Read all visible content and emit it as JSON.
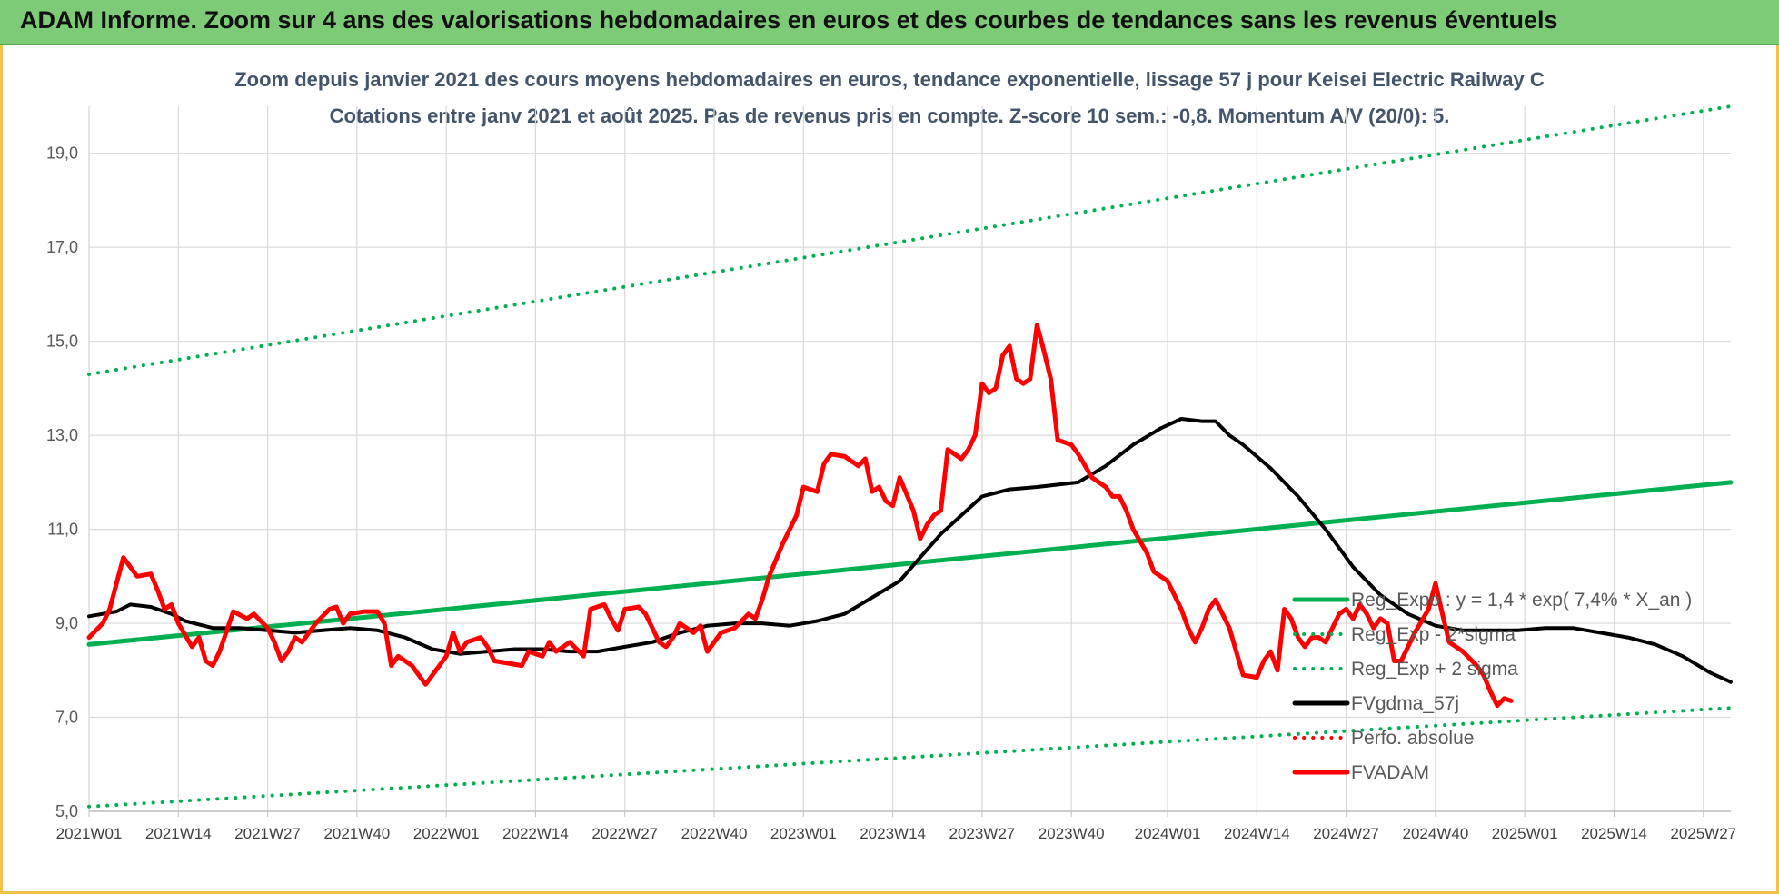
{
  "header": {
    "title": "ADAM Informe. Zoom sur 4 ans des valorisations hebdomadaires en euros et des courbes de tendances sans les revenus éventuels",
    "background": "#7dcb76"
  },
  "chart_data": {
    "type": "line",
    "title_line1": "Zoom depuis janvier 2021 des cours moyens hebdomadaires en euros, tendance exponentielle, lissage 57 j pour Keisei Electric Railway C",
    "title_line2": "Cotations entre janv 2021 et août 2025.  Pas de revenus pris en compte. Z-score 10 sem.: -0,8. Momentum A/V (20/0): 5.",
    "ylim": [
      5,
      20
    ],
    "yticks": [
      "5,0",
      "7,0",
      "9,0",
      "11,0",
      "13,0",
      "15,0",
      "17,0",
      "19,0"
    ],
    "ytick_values": [
      5,
      7,
      9,
      11,
      13,
      15,
      17,
      19
    ],
    "x_range": [
      0,
      239
    ],
    "xticks": [
      "2021W01",
      "2021W14",
      "2021W27",
      "2021W40",
      "2022W01",
      "2022W14",
      "2022W27",
      "2022W40",
      "2023W01",
      "2023W14",
      "2023W27",
      "2023W40",
      "2024W01",
      "2024W14",
      "2024W27",
      "2024W40",
      "2025W01",
      "2025W14",
      "2025W27"
    ],
    "xtick_positions": [
      0,
      13,
      26,
      39,
      52,
      65,
      78,
      91,
      104,
      117,
      130,
      143,
      157,
      170,
      183,
      196,
      209,
      222,
      235
    ],
    "grid": true,
    "legend_position": "bottom-right",
    "legend": [
      {
        "label": "Reg_Expo : y = 1,4 * exp( 7,4% *  X_an )",
        "color": "#00b050",
        "style": "solid"
      },
      {
        "label": "Reg_Exp - 2*sigma",
        "color": "#00b050",
        "style": "dotted"
      },
      {
        "label": "Reg_Exp + 2 sigma",
        "color": "#00b050",
        "style": "dotted"
      },
      {
        "label": "FVgdma_57j",
        "color": "#000000",
        "style": "solid"
      },
      {
        "label": "Perfo. absolue",
        "color": "#ff0000",
        "style": "dotted"
      },
      {
        "label": "FVADAM",
        "color": "#ff0000",
        "style": "solid"
      }
    ],
    "series": [
      {
        "name": "Reg_Expo : y = 1,4 * exp( 7,4% *  X_an )",
        "color": "#00b050",
        "style": "solid",
        "width": 5,
        "points": [
          [
            0,
            8.55
          ],
          [
            239,
            12.0
          ]
        ]
      },
      {
        "name": "Reg_Exp - 2*sigma",
        "color": "#00b050",
        "style": "dotted",
        "width": 4,
        "points": [
          [
            0,
            5.1
          ],
          [
            239,
            7.2
          ]
        ]
      },
      {
        "name": "Reg_Exp + 2 sigma",
        "color": "#00b050",
        "style": "dotted",
        "width": 4,
        "points": [
          [
            0,
            14.3
          ],
          [
            239,
            20.0
          ]
        ]
      },
      {
        "name": "FVgdma_57j",
        "color": "#000000",
        "style": "solid",
        "width": 4,
        "points": [
          [
            0,
            9.15
          ],
          [
            4,
            9.25
          ],
          [
            6,
            9.4
          ],
          [
            9,
            9.35
          ],
          [
            12,
            9.2
          ],
          [
            14,
            9.05
          ],
          [
            18,
            8.9
          ],
          [
            22,
            8.9
          ],
          [
            26,
            8.85
          ],
          [
            30,
            8.8
          ],
          [
            34,
            8.85
          ],
          [
            38,
            8.9
          ],
          [
            42,
            8.85
          ],
          [
            46,
            8.7
          ],
          [
            50,
            8.45
          ],
          [
            54,
            8.35
          ],
          [
            58,
            8.4
          ],
          [
            62,
            8.45
          ],
          [
            66,
            8.45
          ],
          [
            70,
            8.4
          ],
          [
            74,
            8.4
          ],
          [
            78,
            8.5
          ],
          [
            82,
            8.6
          ],
          [
            86,
            8.8
          ],
          [
            90,
            8.95
          ],
          [
            94,
            9.0
          ],
          [
            98,
            9.0
          ],
          [
            102,
            8.95
          ],
          [
            106,
            9.05
          ],
          [
            110,
            9.2
          ],
          [
            114,
            9.55
          ],
          [
            118,
            9.9
          ],
          [
            121,
            10.4
          ],
          [
            124,
            10.9
          ],
          [
            127,
            11.3
          ],
          [
            130,
            11.7
          ],
          [
            134,
            11.85
          ],
          [
            138,
            11.9
          ],
          [
            144,
            12.0
          ],
          [
            148,
            12.35
          ],
          [
            152,
            12.8
          ],
          [
            156,
            13.15
          ],
          [
            159,
            13.35
          ],
          [
            162,
            13.3
          ],
          [
            164,
            13.3
          ],
          [
            166,
            13.0
          ],
          [
            168,
            12.8
          ],
          [
            172,
            12.3
          ],
          [
            176,
            11.7
          ],
          [
            180,
            11.0
          ],
          [
            184,
            10.2
          ],
          [
            188,
            9.6
          ],
          [
            192,
            9.2
          ],
          [
            196,
            8.95
          ],
          [
            200,
            8.85
          ],
          [
            204,
            8.85
          ],
          [
            208,
            8.85
          ],
          [
            212,
            8.9
          ],
          [
            216,
            8.9
          ],
          [
            220,
            8.8
          ],
          [
            224,
            8.7
          ],
          [
            228,
            8.55
          ],
          [
            232,
            8.3
          ],
          [
            236,
            7.95
          ],
          [
            239,
            7.75
          ]
        ]
      },
      {
        "name": "FVADAM",
        "color": "#ff0000",
        "style": "solid",
        "width": 5,
        "points": [
          [
            0,
            8.7
          ],
          [
            2,
            9.0
          ],
          [
            3,
            9.3
          ],
          [
            5,
            10.4
          ],
          [
            7,
            10.0
          ],
          [
            9,
            10.05
          ],
          [
            10,
            9.7
          ],
          [
            11,
            9.3
          ],
          [
            12,
            9.4
          ],
          [
            13,
            9.0
          ],
          [
            15,
            8.5
          ],
          [
            16,
            8.7
          ],
          [
            17,
            8.2
          ],
          [
            18,
            8.1
          ],
          [
            19,
            8.4
          ],
          [
            21,
            9.25
          ],
          [
            23,
            9.1
          ],
          [
            24,
            9.2
          ],
          [
            26,
            8.9
          ],
          [
            27,
            8.6
          ],
          [
            28,
            8.2
          ],
          [
            29,
            8.4
          ],
          [
            30,
            8.7
          ],
          [
            31,
            8.6
          ],
          [
            33,
            9.0
          ],
          [
            35,
            9.3
          ],
          [
            36,
            9.35
          ],
          [
            37,
            9.0
          ],
          [
            38,
            9.2
          ],
          [
            40,
            9.25
          ],
          [
            42,
            9.25
          ],
          [
            43,
            9.0
          ],
          [
            44,
            8.1
          ],
          [
            45,
            8.3
          ],
          [
            47,
            8.1
          ],
          [
            48,
            7.9
          ],
          [
            49,
            7.7
          ],
          [
            50,
            7.9
          ],
          [
            52,
            8.3
          ],
          [
            53,
            8.8
          ],
          [
            54,
            8.4
          ],
          [
            55,
            8.6
          ],
          [
            57,
            8.7
          ],
          [
            58,
            8.5
          ],
          [
            59,
            8.2
          ],
          [
            61,
            8.15
          ],
          [
            63,
            8.1
          ],
          [
            64,
            8.4
          ],
          [
            66,
            8.3
          ],
          [
            67,
            8.6
          ],
          [
            68,
            8.4
          ],
          [
            70,
            8.6
          ],
          [
            72,
            8.3
          ],
          [
            73,
            9.3
          ],
          [
            75,
            9.4
          ],
          [
            76,
            9.1
          ],
          [
            77,
            8.85
          ],
          [
            78,
            9.3
          ],
          [
            80,
            9.35
          ],
          [
            81,
            9.2
          ],
          [
            82,
            8.9
          ],
          [
            83,
            8.6
          ],
          [
            84,
            8.5
          ],
          [
            85,
            8.7
          ],
          [
            86,
            9.0
          ],
          [
            88,
            8.8
          ],
          [
            89,
            8.95
          ],
          [
            90,
            8.4
          ],
          [
            92,
            8.8
          ],
          [
            94,
            8.9
          ],
          [
            96,
            9.2
          ],
          [
            97,
            9.1
          ],
          [
            98,
            9.5
          ],
          [
            99,
            10.0
          ],
          [
            101,
            10.7
          ],
          [
            103,
            11.3
          ],
          [
            104,
            11.9
          ],
          [
            106,
            11.8
          ],
          [
            107,
            12.4
          ],
          [
            108,
            12.6
          ],
          [
            110,
            12.55
          ],
          [
            112,
            12.35
          ],
          [
            113,
            12.5
          ],
          [
            114,
            11.8
          ],
          [
            115,
            11.9
          ],
          [
            116,
            11.6
          ],
          [
            117,
            11.5
          ],
          [
            118,
            12.1
          ],
          [
            120,
            11.4
          ],
          [
            121,
            10.8
          ],
          [
            122,
            11.1
          ],
          [
            123,
            11.3
          ],
          [
            124,
            11.4
          ],
          [
            125,
            12.7
          ],
          [
            127,
            12.5
          ],
          [
            128,
            12.7
          ],
          [
            129,
            13.0
          ],
          [
            130,
            14.1
          ],
          [
            131,
            13.9
          ],
          [
            132,
            14.0
          ],
          [
            133,
            14.7
          ],
          [
            134,
            14.9
          ],
          [
            135,
            14.2
          ],
          [
            136,
            14.1
          ],
          [
            137,
            14.2
          ],
          [
            138,
            15.35
          ],
          [
            139,
            14.8
          ],
          [
            140,
            14.2
          ],
          [
            141,
            12.9
          ],
          [
            143,
            12.8
          ],
          [
            144,
            12.6
          ],
          [
            146,
            12.1
          ],
          [
            148,
            11.9
          ],
          [
            149,
            11.7
          ],
          [
            150,
            11.7
          ],
          [
            151,
            11.4
          ],
          [
            152,
            11.0
          ],
          [
            154,
            10.5
          ],
          [
            155,
            10.1
          ],
          [
            157,
            9.9
          ],
          [
            158,
            9.6
          ],
          [
            159,
            9.3
          ],
          [
            160,
            8.9
          ],
          [
            161,
            8.6
          ],
          [
            162,
            8.9
          ],
          [
            163,
            9.3
          ],
          [
            164,
            9.5
          ],
          [
            165,
            9.2
          ],
          [
            166,
            8.9
          ],
          [
            167,
            8.4
          ],
          [
            168,
            7.9
          ],
          [
            170,
            7.85
          ],
          [
            171,
            8.2
          ],
          [
            172,
            8.4
          ],
          [
            173,
            8.0
          ],
          [
            174,
            9.3
          ],
          [
            175,
            9.1
          ],
          [
            176,
            8.7
          ],
          [
            177,
            8.5
          ],
          [
            178,
            8.7
          ],
          [
            179,
            8.7
          ],
          [
            180,
            8.6
          ],
          [
            181,
            8.9
          ],
          [
            182,
            9.2
          ],
          [
            183,
            9.3
          ],
          [
            184,
            9.1
          ],
          [
            185,
            9.4
          ],
          [
            186,
            9.2
          ],
          [
            187,
            8.9
          ],
          [
            188,
            9.1
          ],
          [
            189,
            9.0
          ],
          [
            190,
            8.2
          ],
          [
            191,
            8.2
          ],
          [
            193,
            8.8
          ],
          [
            195,
            9.3
          ],
          [
            196,
            9.85
          ],
          [
            197,
            9.2
          ],
          [
            198,
            8.6
          ],
          [
            199,
            8.5
          ],
          [
            200,
            8.4
          ],
          [
            202,
            8.1
          ],
          [
            203,
            7.9
          ],
          [
            204,
            7.55
          ],
          [
            205,
            7.25
          ],
          [
            206,
            7.4
          ],
          [
            207,
            7.35
          ]
        ]
      }
    ],
    "perfo_absolue_color": "#ff0000"
  }
}
